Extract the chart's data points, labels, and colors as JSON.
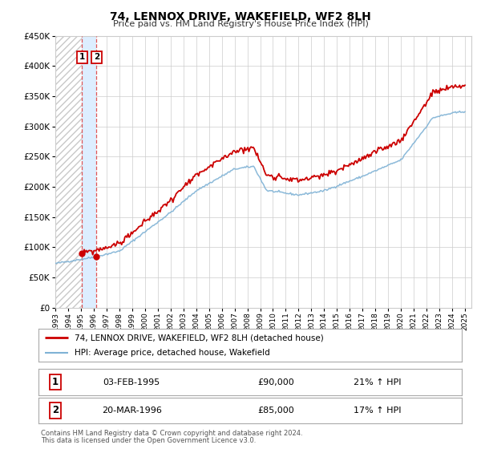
{
  "title": "74, LENNOX DRIVE, WAKEFIELD, WF2 8LH",
  "subtitle": "Price paid vs. HM Land Registry's House Price Index (HPI)",
  "legend_entry1": "74, LENNOX DRIVE, WAKEFIELD, WF2 8LH (detached house)",
  "legend_entry2": "HPI: Average price, detached house, Wakefield",
  "table_row1": [
    "1",
    "03-FEB-1995",
    "£90,000",
    "21% ↑ HPI"
  ],
  "table_row2": [
    "2",
    "20-MAR-1996",
    "£85,000",
    "17% ↑ HPI"
  ],
  "footnote1": "Contains HM Land Registry data © Crown copyright and database right 2024.",
  "footnote2": "This data is licensed under the Open Government Licence v3.0.",
  "sale1_date": 1995.09,
  "sale1_price": 90000,
  "sale2_date": 1996.22,
  "sale2_price": 85000,
  "ylim_min": 0,
  "ylim_max": 450000,
  "xlim_min": 1993.0,
  "xlim_max": 2025.5,
  "background_color": "#ffffff",
  "plot_bg_color": "#ffffff",
  "grid_color": "#cccccc",
  "red_color": "#cc0000",
  "blue_color": "#7fb2d5",
  "hatch_color": "#c8c8c8",
  "shade_color": "#ddeeff",
  "dashed_line_color": "#dd4444"
}
